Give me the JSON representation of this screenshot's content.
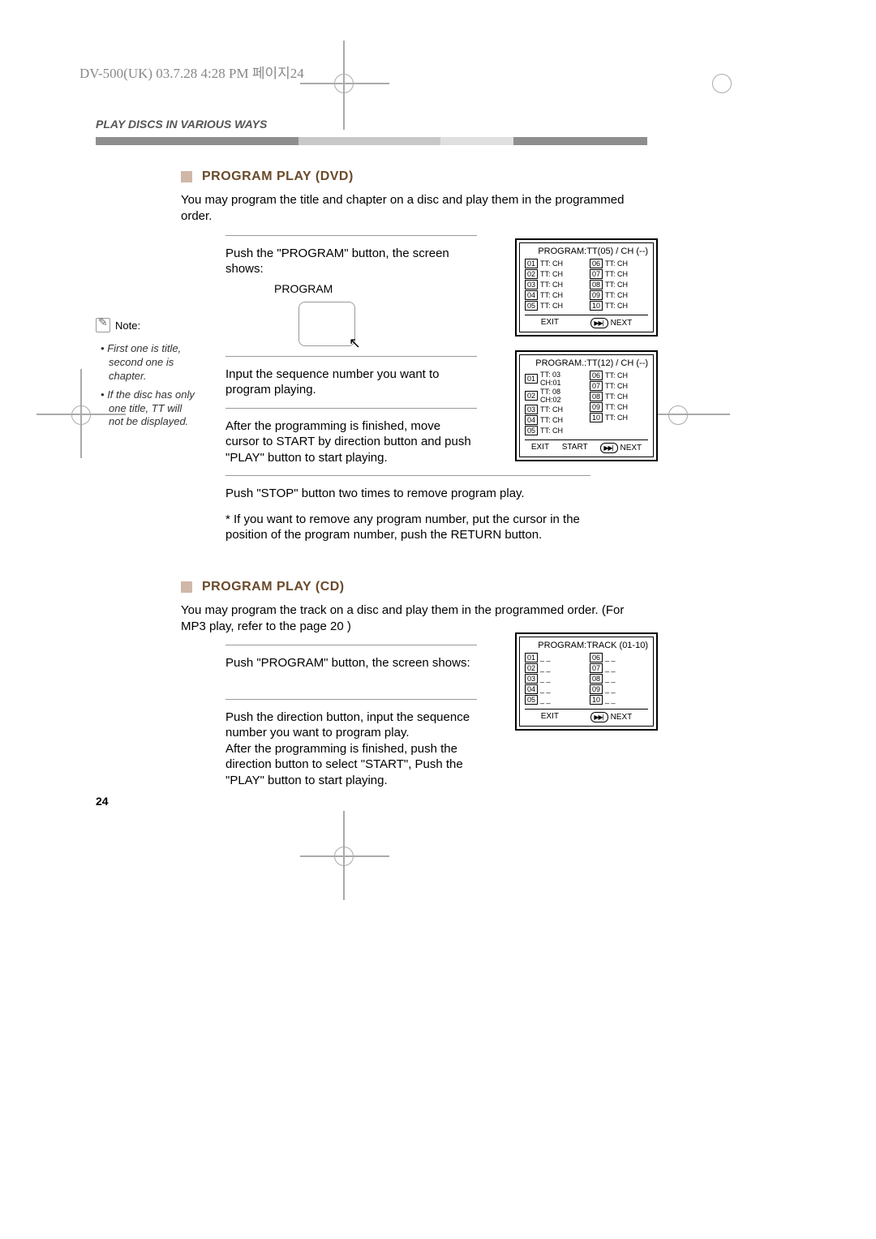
{
  "header_meta": "DV-500(UK)  03.7.28 4:28 PM  페이지24",
  "section_header": "PLAY DISCS IN VARIOUS WAYS",
  "dvd": {
    "heading": "PROGRAM PLAY (DVD)",
    "intro": "You may program the title and chapter on a disc and play them in the programmed order.",
    "step1": "Push the \"PROGRAM\" button, the screen shows:",
    "step1_label": "PROGRAM",
    "step2": "Input the sequence number you want to program playing.",
    "step3": "After the programming is finished, move cursor to START by direction button and push \"PLAY\" button to start playing.",
    "step4": "Push \"STOP\" button two times to remove program play.",
    "star": "* If you want to remove any program number, put the cursor in the position of the program number, push the RETURN button."
  },
  "note": {
    "label": "Note:",
    "items": [
      "First one is title, second one is chapter.",
      "If the disc has only one title, TT will not be displayed."
    ]
  },
  "osd1": {
    "title": "PROGRAM:TT(05) / CH (--)",
    "left": [
      [
        "01",
        "TT:  CH"
      ],
      [
        "02",
        "TT:  CH"
      ],
      [
        "03",
        "TT:  CH"
      ],
      [
        "04",
        "TT:  CH"
      ],
      [
        "05",
        "TT:  CH"
      ]
    ],
    "right": [
      [
        "06",
        "TT:  CH"
      ],
      [
        "07",
        "TT:  CH"
      ],
      [
        "08",
        "TT:  CH"
      ],
      [
        "09",
        "TT:  CH"
      ],
      [
        "10",
        "TT:  CH"
      ]
    ],
    "footer": [
      "EXIT",
      "NEXT"
    ]
  },
  "osd2": {
    "title": "PROGRAM.:TT(12) / CH (--)",
    "left": [
      [
        "01",
        "TT: 03 CH:01"
      ],
      [
        "02",
        "TT: 08 CH:02"
      ],
      [
        "03",
        "TT:  CH"
      ],
      [
        "04",
        "TT:  CH"
      ],
      [
        "05",
        "TT:  CH"
      ]
    ],
    "right": [
      [
        "06",
        "TT:  CH"
      ],
      [
        "07",
        "TT:  CH"
      ],
      [
        "08",
        "TT:  CH"
      ],
      [
        "09",
        "TT:  CH"
      ],
      [
        "10",
        "TT:  CH"
      ]
    ],
    "footer": [
      "EXIT",
      "START",
      "NEXT"
    ]
  },
  "cd": {
    "heading": "PROGRAM PLAY (CD)",
    "intro": "You may program the track on a disc and play them in the programmed order. (For MP3 play, refer to the page 20 )",
    "step1": "Push \"PROGRAM\" button, the screen shows:",
    "step2a": "Push the direction button, input the sequence number you want to program play.",
    "step2b": "After the programming is finished, push the direction button to select \"START\", Push the \"PLAY\" button to start playing."
  },
  "osd3": {
    "title": "PROGRAM:TRACK (01-10)",
    "left": [
      [
        "01",
        "_ _"
      ],
      [
        "02",
        "_ _"
      ],
      [
        "03",
        "_ _"
      ],
      [
        "04",
        "_ _"
      ],
      [
        "05",
        "_ _"
      ]
    ],
    "right": [
      [
        "06",
        "_ _"
      ],
      [
        "07",
        "_ _"
      ],
      [
        "08",
        "_ _"
      ],
      [
        "09",
        "_ _"
      ],
      [
        "10",
        "_ _"
      ]
    ],
    "footer": [
      "EXIT",
      "NEXT"
    ]
  },
  "page_number": "24"
}
